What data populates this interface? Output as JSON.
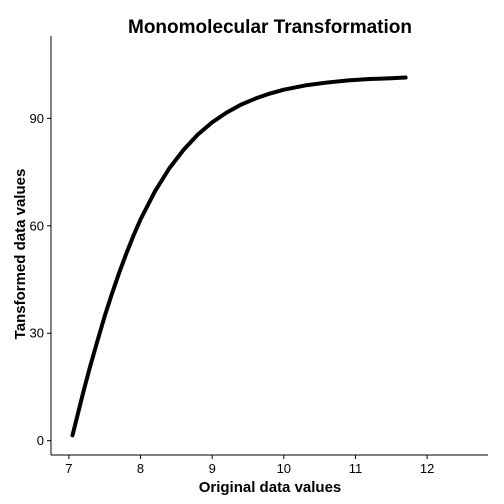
{
  "chart_data": {
    "type": "line",
    "title": "Monomolecular Transformation",
    "xlabel": "Original data values",
    "ylabel": "Tansformed data values",
    "xlim": [
      6.75,
      12.85
    ],
    "ylim": [
      -4,
      113
    ],
    "xticks": [
      7,
      8,
      9,
      10,
      11,
      12
    ],
    "yticks": [
      0,
      30,
      60,
      90
    ],
    "grid": false,
    "series": [
      {
        "x": [
          7.05,
          7.1,
          7.2,
          7.3,
          7.4,
          7.5,
          7.6,
          7.7,
          7.8,
          7.9,
          8.0,
          8.2,
          8.4,
          8.6,
          8.8,
          9.0,
          9.2,
          9.4,
          9.6,
          9.8,
          10.0,
          10.3,
          10.6,
          10.9,
          11.2,
          11.5,
          11.7
        ],
        "y": [
          1.5,
          5.5,
          13.5,
          21.0,
          28.0,
          34.8,
          41.0,
          46.8,
          52.2,
          57.2,
          61.8,
          69.6,
          76.0,
          81.2,
          85.5,
          88.9,
          91.6,
          93.8,
          95.5,
          96.9,
          98.0,
          99.2,
          100.0,
          100.6,
          101.0,
          101.2,
          101.4
        ]
      }
    ]
  }
}
